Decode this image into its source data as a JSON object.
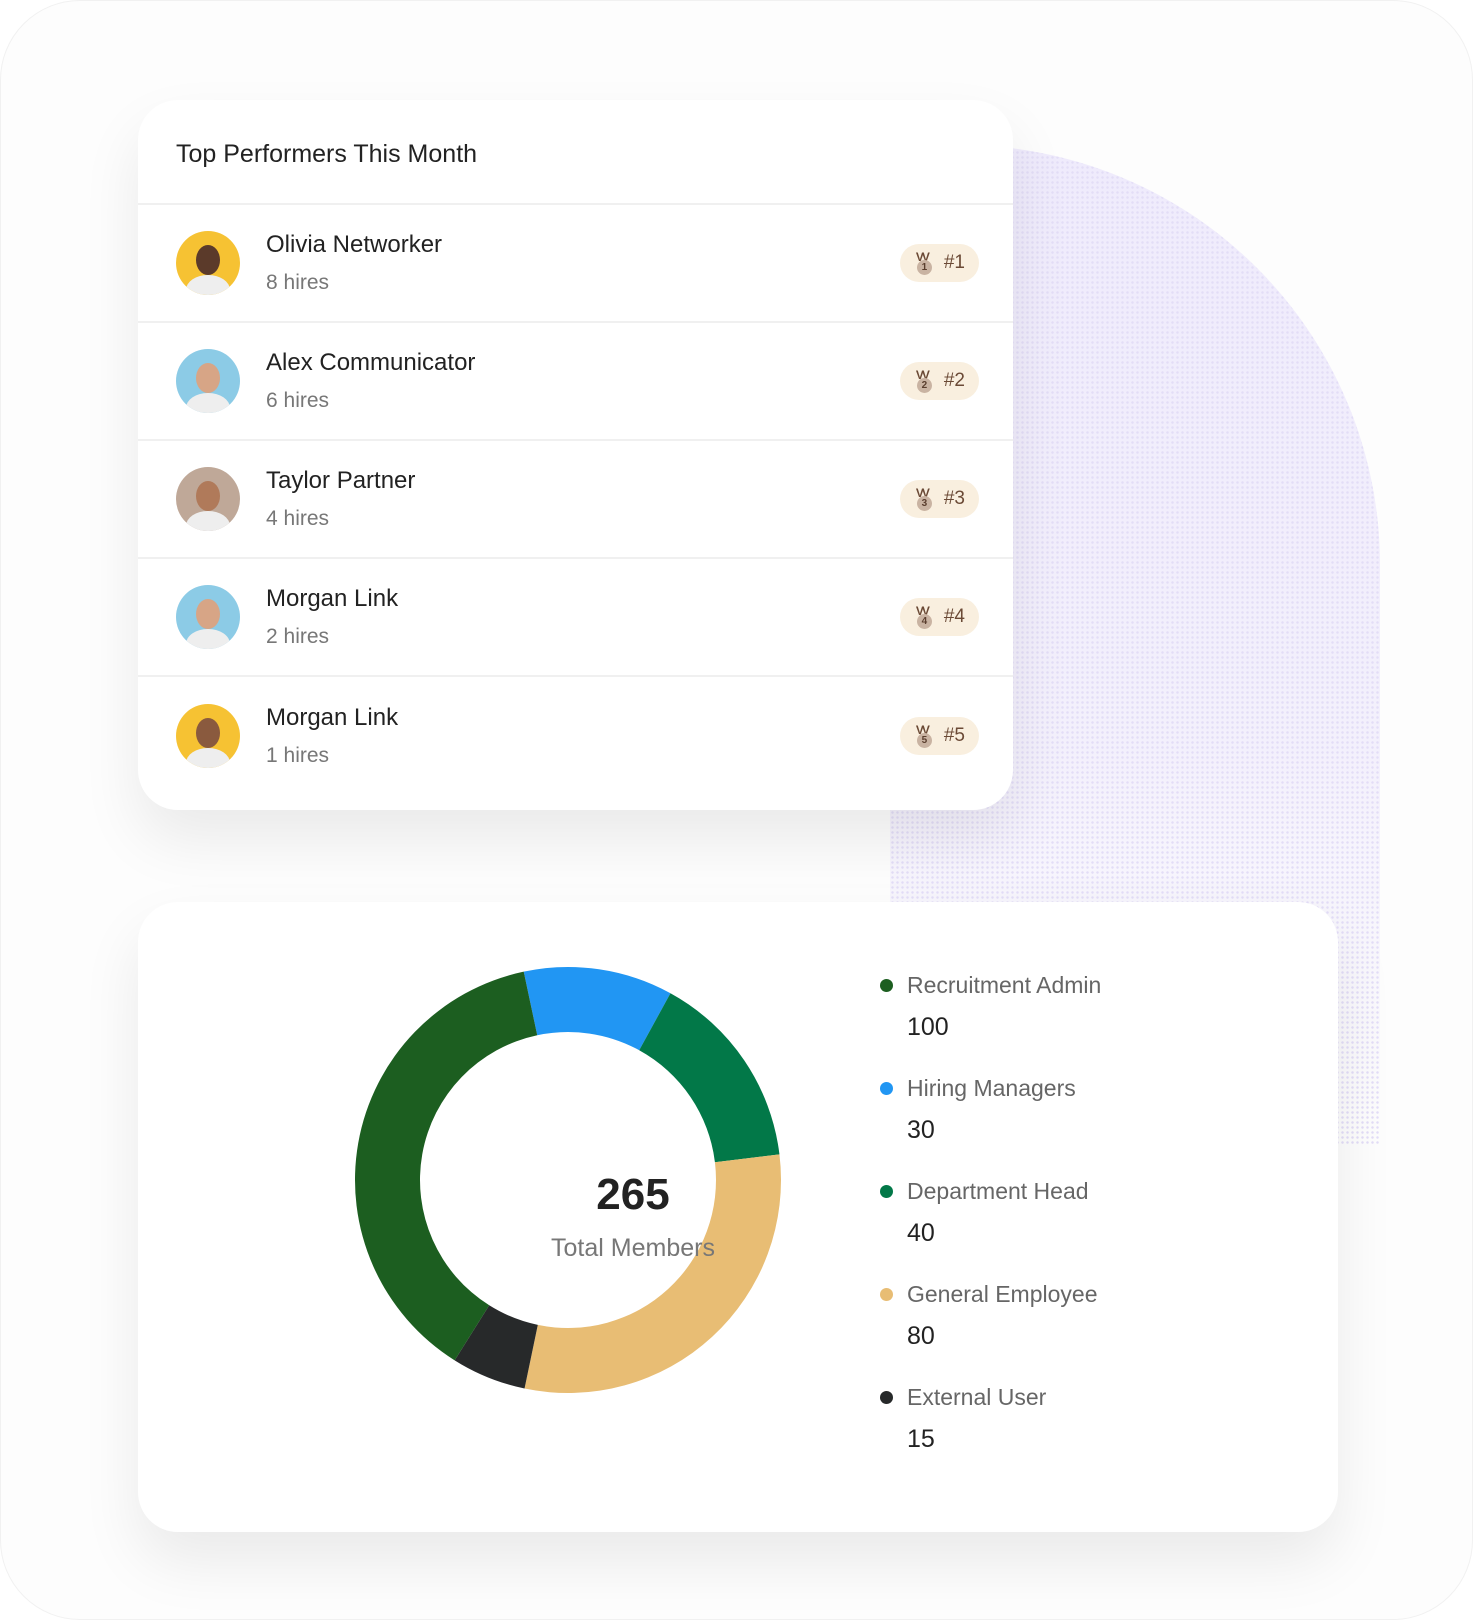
{
  "performers": {
    "title": "Top Performers This Month",
    "items": [
      {
        "name": "Olivia Networker",
        "hires": "8 hires",
        "rank": "#1",
        "medal_num": "1",
        "avatar_bg": "#f6c233",
        "skin": "#5b3a2a"
      },
      {
        "name": "Alex Communicator",
        "hires": "6 hires",
        "rank": "#2",
        "medal_num": "2",
        "avatar_bg": "#8ccbe6",
        "skin": "#d7a586"
      },
      {
        "name": "Taylor Partner",
        "hires": "4 hires",
        "rank": "#3",
        "medal_num": "3",
        "avatar_bg": "#bfa898",
        "skin": "#b07a5a"
      },
      {
        "name": "Morgan Link",
        "hires": "2 hires",
        "rank": "#4",
        "medal_num": "4",
        "avatar_bg": "#8ccbe6",
        "skin": "#d7a586"
      },
      {
        "name": "Morgan Link",
        "hires": "1 hires",
        "rank": "#5",
        "medal_num": "5",
        "avatar_bg": "#f6c233",
        "skin": "#8a5a3e"
      }
    ]
  },
  "chart_data": {
    "type": "pie",
    "variant": "donut",
    "total": "265",
    "total_label": "Total Members",
    "categories": [
      "Recruitment Admin",
      "Hiring Managers",
      "Department Head",
      "General Employee",
      "External User"
    ],
    "values": [
      100,
      30,
      40,
      80,
      15
    ],
    "value_labels": [
      "100",
      "30",
      "40",
      "80",
      "15"
    ],
    "colors": [
      "#1c5e20",
      "#2196f3",
      "#027848",
      "#e8bd74",
      "#27292a"
    ]
  }
}
